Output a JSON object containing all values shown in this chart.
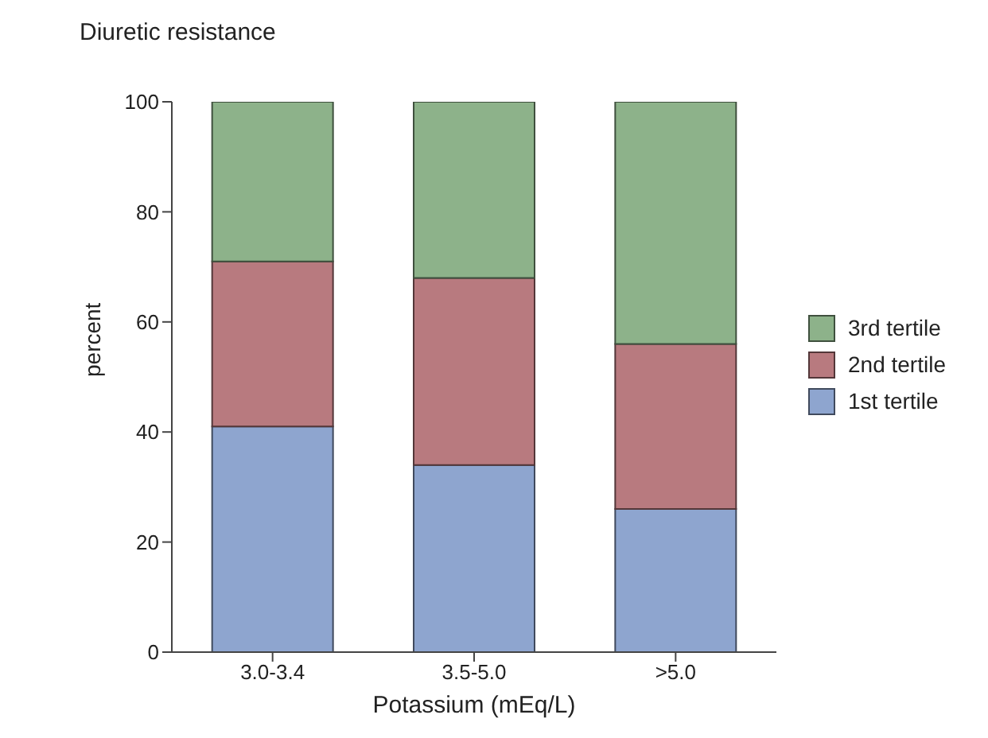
{
  "chart_data": {
    "type": "bar",
    "title": "Diuretic resistance",
    "xlabel": "Potassium (mEq/L)",
    "ylabel": "percent",
    "categories": [
      "3.0-3.4",
      "3.5-5.0",
      ">5.0"
    ],
    "stacked": true,
    "ylim": [
      0,
      100
    ],
    "yticks": [
      0,
      20,
      40,
      60,
      80,
      100
    ],
    "grid": false,
    "legend": "right",
    "series": [
      {
        "name": "1st tertile",
        "color": "#8ea5cf",
        "values": [
          41,
          34,
          26
        ]
      },
      {
        "name": "2nd tertile",
        "color": "#b87a7f",
        "values": [
          30,
          34,
          30
        ]
      },
      {
        "name": "3rd tertile",
        "color": "#8db28a",
        "values": [
          29,
          32,
          44
        ]
      }
    ]
  }
}
